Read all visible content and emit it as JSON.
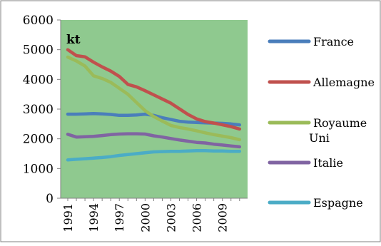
{
  "chart_data": {
    "type": "line",
    "title": "",
    "ylabel": "kt",
    "xlabel": "",
    "ylim": [
      0,
      6000
    ],
    "yticks": [
      0,
      1000,
      2000,
      3000,
      4000,
      5000,
      6000
    ],
    "x": [
      1991,
      1992,
      1993,
      1994,
      1995,
      1996,
      1997,
      1998,
      1999,
      2000,
      2001,
      2002,
      2003,
      2004,
      2005,
      2006,
      2007,
      2008,
      2009,
      2010,
      2011
    ],
    "xtick_labels": [
      "1991",
      "1994",
      "1997",
      "2000",
      "2003",
      "2006",
      "2009"
    ],
    "plot_background": "#8fc98f",
    "legend_position": "right",
    "grid": false,
    "series": [
      {
        "name": "France",
        "color": "#4a7ebb",
        "values": [
          2830,
          2830,
          2840,
          2850,
          2840,
          2820,
          2790,
          2790,
          2800,
          2830,
          2790,
          2710,
          2650,
          2590,
          2560,
          2550,
          2540,
          2530,
          2520,
          2500,
          2470
        ]
      },
      {
        "name": "Allemagne",
        "color": "#c0504d",
        "values": [
          5000,
          4800,
          4760,
          4580,
          4420,
          4280,
          4100,
          3830,
          3750,
          3620,
          3480,
          3340,
          3200,
          3010,
          2820,
          2670,
          2580,
          2530,
          2470,
          2410,
          2330
        ]
      },
      {
        "name": "Royaume Uni",
        "color": "#9bbb59",
        "values": [
          4750,
          4620,
          4450,
          4120,
          4030,
          3900,
          3700,
          3500,
          3220,
          2950,
          2750,
          2600,
          2450,
          2380,
          2330,
          2270,
          2200,
          2140,
          2090,
          2040,
          1970
        ]
      },
      {
        "name": "Italie",
        "color": "#8064a2",
        "values": [
          2150,
          2060,
          2070,
          2080,
          2110,
          2140,
          2160,
          2170,
          2170,
          2160,
          2100,
          2060,
          2010,
          1960,
          1920,
          1880,
          1860,
          1820,
          1790,
          1760,
          1730
        ]
      },
      {
        "name": "Espagne",
        "color": "#4bacc6",
        "values": [
          1290,
          1310,
          1330,
          1350,
          1370,
          1400,
          1440,
          1470,
          1500,
          1530,
          1560,
          1570,
          1580,
          1580,
          1590,
          1600,
          1600,
          1590,
          1590,
          1580,
          1580
        ]
      }
    ]
  }
}
